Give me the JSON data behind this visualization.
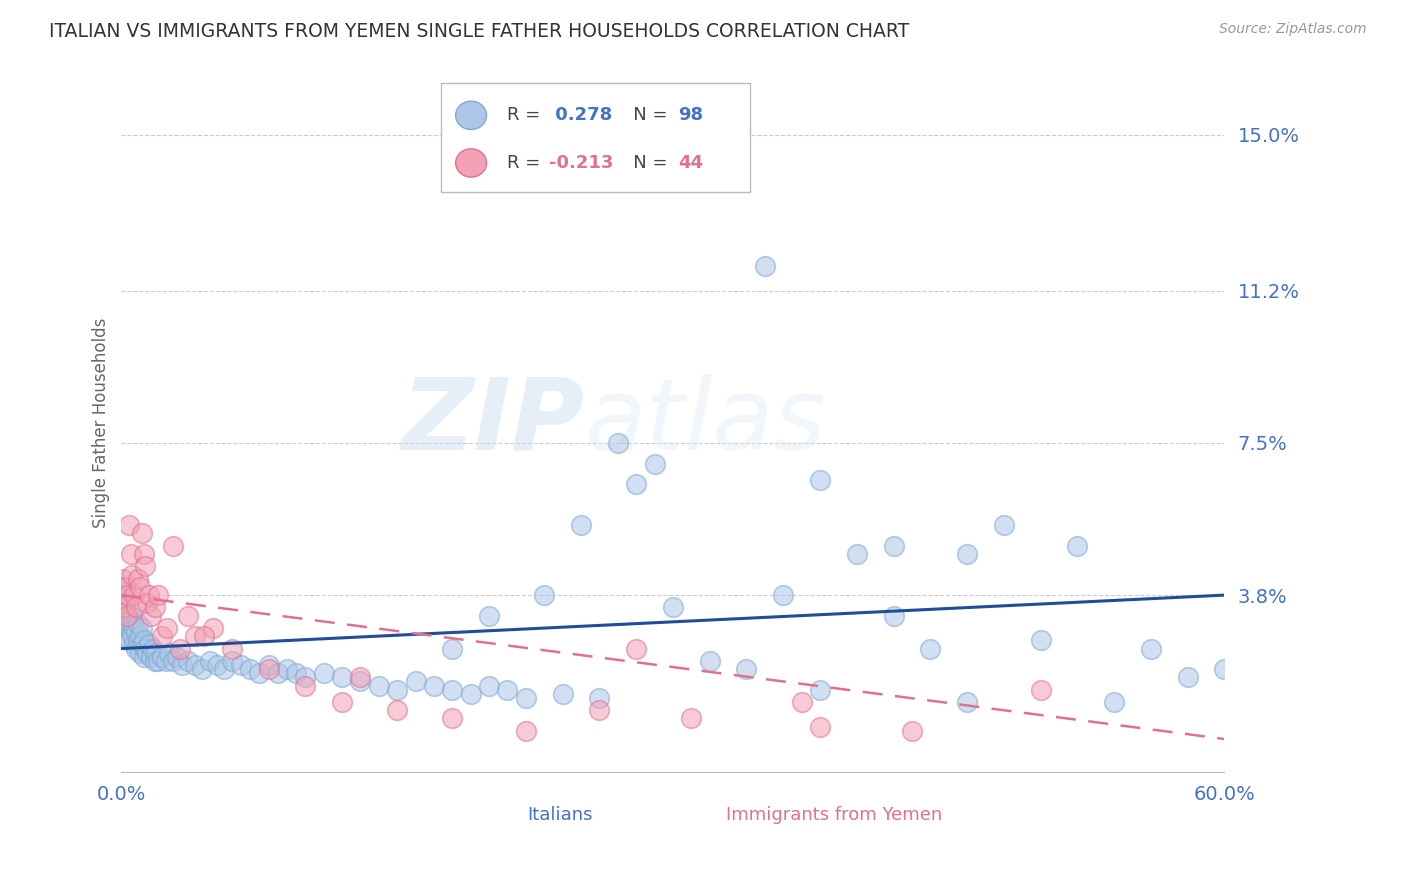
{
  "title": "ITALIAN VS IMMIGRANTS FROM YEMEN SINGLE FATHER HOUSEHOLDS CORRELATION CHART",
  "source": "Source: ZipAtlas.com",
  "xlabel_italians": "Italians",
  "xlabel_yemen": "Immigrants from Yemen",
  "ylabel": "Single Father Households",
  "watermark_zip": "ZIP",
  "watermark_atlas": "atlas",
  "xlim": [
    0.0,
    0.6
  ],
  "ylim": [
    -0.005,
    0.165
  ],
  "yticks": [
    0.038,
    0.075,
    0.112,
    0.15
  ],
  "ytick_labels": [
    "3.8%",
    "7.5%",
    "11.2%",
    "15.0%"
  ],
  "xticks": [
    0.0,
    0.6
  ],
  "xtick_labels": [
    "0.0%",
    "60.0%"
  ],
  "r_italian": 0.278,
  "n_italian": 98,
  "r_yemen": -0.213,
  "n_yemen": 44,
  "italian_color": "#AEC6E8",
  "italian_edge_color": "#7AAAD0",
  "italian_line_color": "#1F4E96",
  "yemen_color": "#F4A0B5",
  "yemen_edge_color": "#E07090",
  "yemen_line_color": "#E07090",
  "title_color": "#333333",
  "axis_label_color": "#666666",
  "tick_color": "#4472C4",
  "grid_color": "#CCCCCC",
  "background_color": "#FFFFFF",
  "italian_line_x0": 0.0,
  "italian_line_y0": 0.025,
  "italian_line_x1": 0.6,
  "italian_line_y1": 0.038,
  "yemen_line_x0": 0.0,
  "yemen_line_y0": 0.038,
  "yemen_line_x1": 0.6,
  "yemen_line_y1": 0.003,
  "italian_x": [
    0.001,
    0.001,
    0.001,
    0.002,
    0.002,
    0.002,
    0.003,
    0.003,
    0.003,
    0.004,
    0.004,
    0.005,
    0.005,
    0.006,
    0.006,
    0.007,
    0.007,
    0.008,
    0.008,
    0.009,
    0.009,
    0.01,
    0.01,
    0.011,
    0.011,
    0.012,
    0.012,
    0.013,
    0.014,
    0.015,
    0.016,
    0.017,
    0.018,
    0.019,
    0.02,
    0.022,
    0.024,
    0.026,
    0.028,
    0.03,
    0.033,
    0.036,
    0.04,
    0.044,
    0.048,
    0.052,
    0.056,
    0.06,
    0.065,
    0.07,
    0.075,
    0.08,
    0.085,
    0.09,
    0.095,
    0.1,
    0.11,
    0.12,
    0.13,
    0.14,
    0.15,
    0.16,
    0.17,
    0.18,
    0.19,
    0.2,
    0.21,
    0.22,
    0.24,
    0.26,
    0.28,
    0.3,
    0.32,
    0.34,
    0.36,
    0.38,
    0.4,
    0.42,
    0.44,
    0.46,
    0.48,
    0.5,
    0.52,
    0.54,
    0.56,
    0.58,
    0.6,
    0.38,
    0.42,
    0.46,
    0.31,
    0.35,
    0.29,
    0.27,
    0.25,
    0.23,
    0.2,
    0.18
  ],
  "italian_y": [
    0.038,
    0.035,
    0.032,
    0.04,
    0.036,
    0.033,
    0.03,
    0.028,
    0.034,
    0.031,
    0.027,
    0.029,
    0.033,
    0.028,
    0.031,
    0.026,
    0.03,
    0.025,
    0.029,
    0.027,
    0.031,
    0.024,
    0.028,
    0.026,
    0.03,
    0.023,
    0.027,
    0.025,
    0.024,
    0.026,
    0.023,
    0.025,
    0.022,
    0.024,
    0.022,
    0.023,
    0.022,
    0.024,
    0.022,
    0.023,
    0.021,
    0.022,
    0.021,
    0.02,
    0.022,
    0.021,
    0.02,
    0.022,
    0.021,
    0.02,
    0.019,
    0.021,
    0.019,
    0.02,
    0.019,
    0.018,
    0.019,
    0.018,
    0.017,
    0.016,
    0.015,
    0.017,
    0.016,
    0.015,
    0.014,
    0.016,
    0.015,
    0.013,
    0.014,
    0.013,
    0.065,
    0.035,
    0.022,
    0.02,
    0.038,
    0.015,
    0.048,
    0.033,
    0.025,
    0.012,
    0.055,
    0.027,
    0.05,
    0.012,
    0.025,
    0.018,
    0.02,
    0.066,
    0.05,
    0.048,
    0.143,
    0.118,
    0.07,
    0.075,
    0.055,
    0.038,
    0.033,
    0.025
  ],
  "yemen_x": [
    0.001,
    0.001,
    0.002,
    0.002,
    0.003,
    0.003,
    0.004,
    0.005,
    0.006,
    0.007,
    0.008,
    0.009,
    0.01,
    0.011,
    0.012,
    0.013,
    0.014,
    0.015,
    0.016,
    0.018,
    0.02,
    0.022,
    0.025,
    0.028,
    0.032,
    0.036,
    0.04,
    0.05,
    0.06,
    0.08,
    0.1,
    0.12,
    0.15,
    0.18,
    0.22,
    0.26,
    0.31,
    0.37,
    0.43,
    0.5,
    0.13,
    0.28,
    0.38,
    0.045
  ],
  "yemen_y": [
    0.042,
    0.036,
    0.04,
    0.035,
    0.038,
    0.033,
    0.055,
    0.048,
    0.043,
    0.038,
    0.035,
    0.042,
    0.04,
    0.053,
    0.048,
    0.045,
    0.036,
    0.038,
    0.033,
    0.035,
    0.038,
    0.028,
    0.03,
    0.05,
    0.025,
    0.033,
    0.028,
    0.03,
    0.025,
    0.02,
    0.016,
    0.012,
    0.01,
    0.008,
    0.005,
    0.01,
    0.008,
    0.012,
    0.005,
    0.015,
    0.018,
    0.025,
    0.006,
    0.028
  ]
}
